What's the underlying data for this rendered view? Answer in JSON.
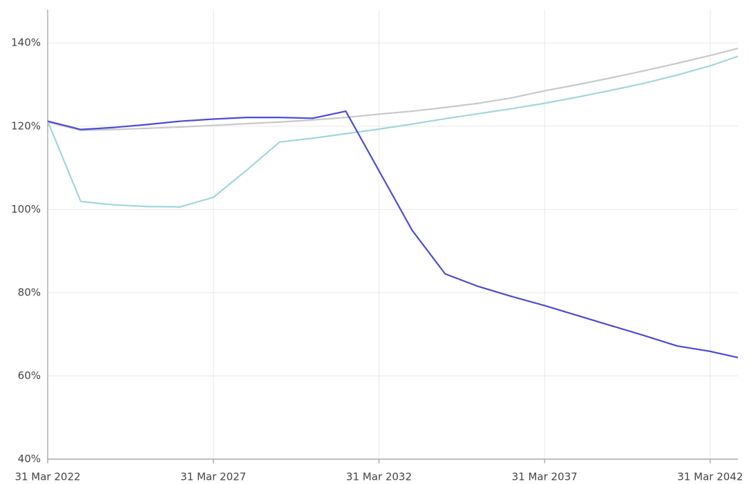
{
  "chart_data": {
    "type": "line",
    "x": [
      "2022-03-31",
      "2023-03-31",
      "2024-03-31",
      "2025-03-31",
      "2026-03-31",
      "2027-03-31",
      "2028-03-31",
      "2029-03-31",
      "2030-03-31",
      "2031-03-31",
      "2032-03-31",
      "2033-03-31",
      "2034-03-31",
      "2035-03-31",
      "2036-03-31",
      "2037-03-31",
      "2038-03-31",
      "2039-03-31",
      "2040-03-31",
      "2041-03-31",
      "2042-03-31",
      "2043-01-31"
    ],
    "series": [
      {
        "color": "#c8c8c8",
        "values": [
          121,
          119,
          119.2,
          119.5,
          119.8,
          120.2,
          120.6,
          121.0,
          121.5,
          122.1,
          122.9,
          123.6,
          124.5,
          125.5,
          126.8,
          128.5,
          130,
          131.6,
          133.3,
          135.1,
          137.0,
          138.7
        ]
      },
      {
        "color": "#9fd6dc",
        "values": [
          121.2,
          101.9,
          101.1,
          100.7,
          100.6,
          102.9,
          109.4,
          116.2,
          117.1,
          118.2,
          119.3,
          120.5,
          121.8,
          123.0,
          124.2,
          125.5,
          127.0,
          128.6,
          130.3,
          132.3,
          134.5,
          136.8
        ]
      },
      {
        "color": "#4a4ad6",
        "values": [
          121.2,
          119.2,
          119.7,
          120.4,
          121.2,
          121.7,
          122.1,
          122.1,
          121.9,
          123.6,
          109.3,
          95.0,
          84.5,
          81.5,
          79.1,
          76.9,
          74.5,
          72.1,
          69.7,
          67.2,
          65.9,
          64.4
        ]
      }
    ],
    "xlim": [
      "2022-03-31",
      "2043-01-31"
    ],
    "xticks": [
      {
        "value": "2022-03-31",
        "label": "31 Mar 2022"
      },
      {
        "value": "2027-03-31",
        "label": "31 Mar 2027"
      },
      {
        "value": "2032-03-31",
        "label": "31 Mar 2032"
      },
      {
        "value": "2037-03-31",
        "label": "31 Mar 2037"
      },
      {
        "value": "2042-03-31",
        "label": "31 Mar 2042"
      }
    ],
    "ylim": [
      40,
      148
    ],
    "yticks": [
      {
        "value": 40,
        "label": "40%"
      },
      {
        "value": 60,
        "label": "60%"
      },
      {
        "value": 80,
        "label": "80%"
      },
      {
        "value": 100,
        "label": "100%"
      },
      {
        "value": 120,
        "label": "120%"
      },
      {
        "value": 140,
        "label": "140%"
      }
    ],
    "grid": true
  }
}
